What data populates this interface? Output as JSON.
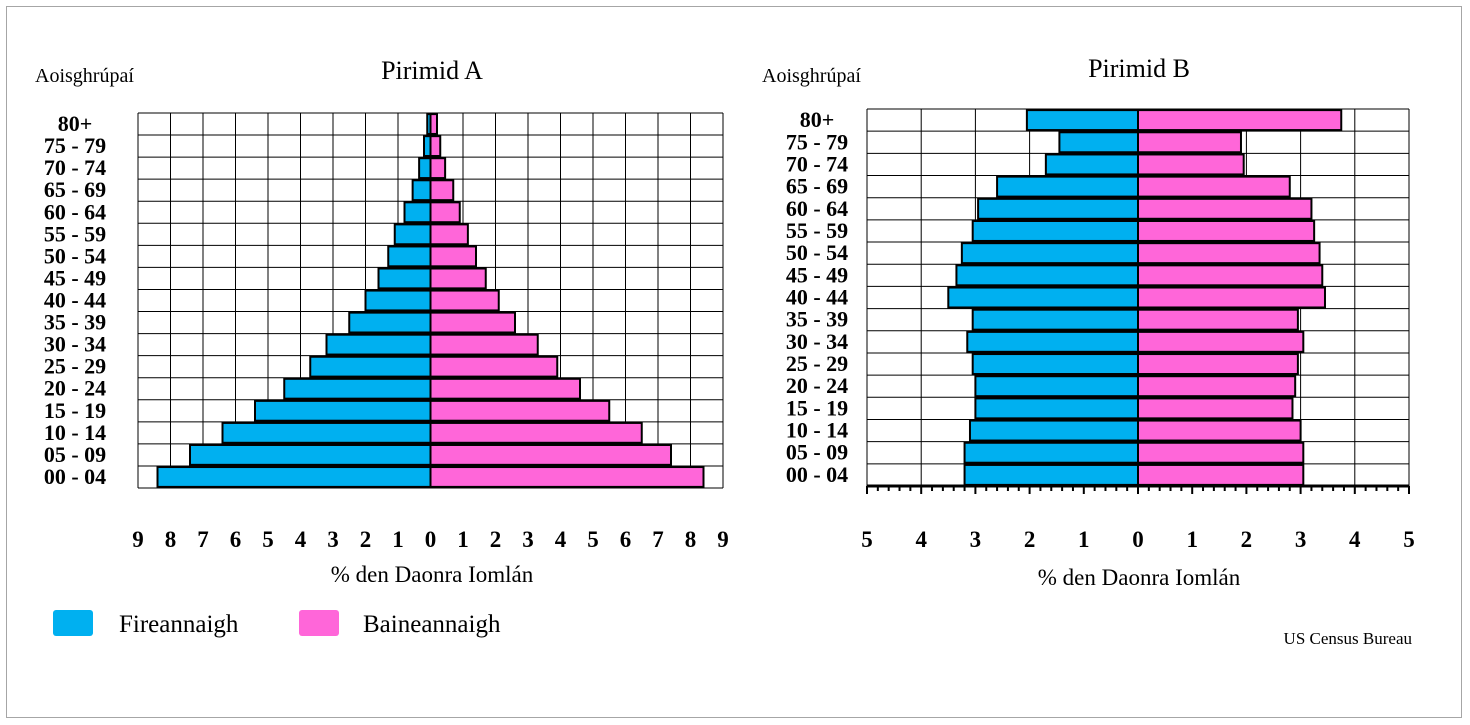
{
  "legend": [
    {
      "label": "Fireannaigh",
      "color": "#00b0f0"
    },
    {
      "label": "Baineannaigh",
      "color": "#ff66d9"
    }
  ],
  "source": "US Census Bureau",
  "chart_data": [
    {
      "type": "bar",
      "orientation": "horizontal",
      "title": "Pirimid A",
      "ylabel": "Aoisghrúpaí",
      "xlabel": "% den Daonra Iomlán",
      "categories": [
        "00 - 04",
        "05 - 09",
        "10 - 14",
        "15 - 19",
        "20 - 24",
        "25 - 29",
        "30 - 34",
        "35 - 39",
        "40 - 44",
        "45 - 49",
        "50 - 54",
        "55 - 59",
        "60 - 64",
        "65 - 69",
        "70 - 74",
        "75 - 79",
        "80+"
      ],
      "xlim": [
        -9,
        9
      ],
      "xticks": [
        "9",
        "8",
        "7",
        "6",
        "5",
        "4",
        "3",
        "2",
        "1",
        "0",
        "1",
        "2",
        "3",
        "4",
        "5",
        "6",
        "7",
        "8",
        "9"
      ],
      "grid": true,
      "series": [
        {
          "name": "Fireannaigh",
          "color": "#00b0f0",
          "values": [
            8.4,
            7.4,
            6.4,
            5.4,
            4.5,
            3.7,
            3.2,
            2.5,
            2.0,
            1.6,
            1.3,
            1.1,
            0.8,
            0.55,
            0.35,
            0.2,
            0.1
          ]
        },
        {
          "name": "Baineannaigh",
          "color": "#ff66d9",
          "values": [
            8.4,
            7.4,
            6.5,
            5.5,
            4.6,
            3.9,
            3.3,
            2.6,
            2.1,
            1.7,
            1.4,
            1.15,
            0.9,
            0.7,
            0.45,
            0.3,
            0.2
          ]
        }
      ]
    },
    {
      "type": "bar",
      "orientation": "horizontal",
      "title": "Pirimid B",
      "ylabel": "Aoisghrúpaí",
      "xlabel": "% den Daonra Iomlán",
      "categories": [
        "00 - 04",
        "05 - 09",
        "10 - 14",
        "15 - 19",
        "20 - 24",
        "25 - 29",
        "30 - 34",
        "35 - 39",
        "40 - 44",
        "45 - 49",
        "50 - 54",
        "55 - 59",
        "60 - 64",
        "65 - 69",
        "70 - 74",
        "75 - 79",
        "80+"
      ],
      "xlim": [
        -5,
        5
      ],
      "xticks": [
        "5",
        "4",
        "3",
        "2",
        "1",
        "0",
        "1",
        "2",
        "3",
        "4",
        "5"
      ],
      "grid": true,
      "series": [
        {
          "name": "Fireannaigh",
          "color": "#00b0f0",
          "values": [
            3.2,
            3.2,
            3.1,
            3.0,
            3.0,
            3.05,
            3.15,
            3.05,
            3.5,
            3.35,
            3.25,
            3.05,
            2.95,
            2.6,
            1.7,
            1.45,
            2.05
          ]
        },
        {
          "name": "Baineannaigh",
          "color": "#ff66d9",
          "values": [
            3.05,
            3.05,
            3.0,
            2.85,
            2.9,
            2.95,
            3.05,
            2.95,
            3.45,
            3.4,
            3.35,
            3.25,
            3.2,
            2.8,
            1.95,
            1.9,
            3.75
          ]
        }
      ]
    }
  ]
}
